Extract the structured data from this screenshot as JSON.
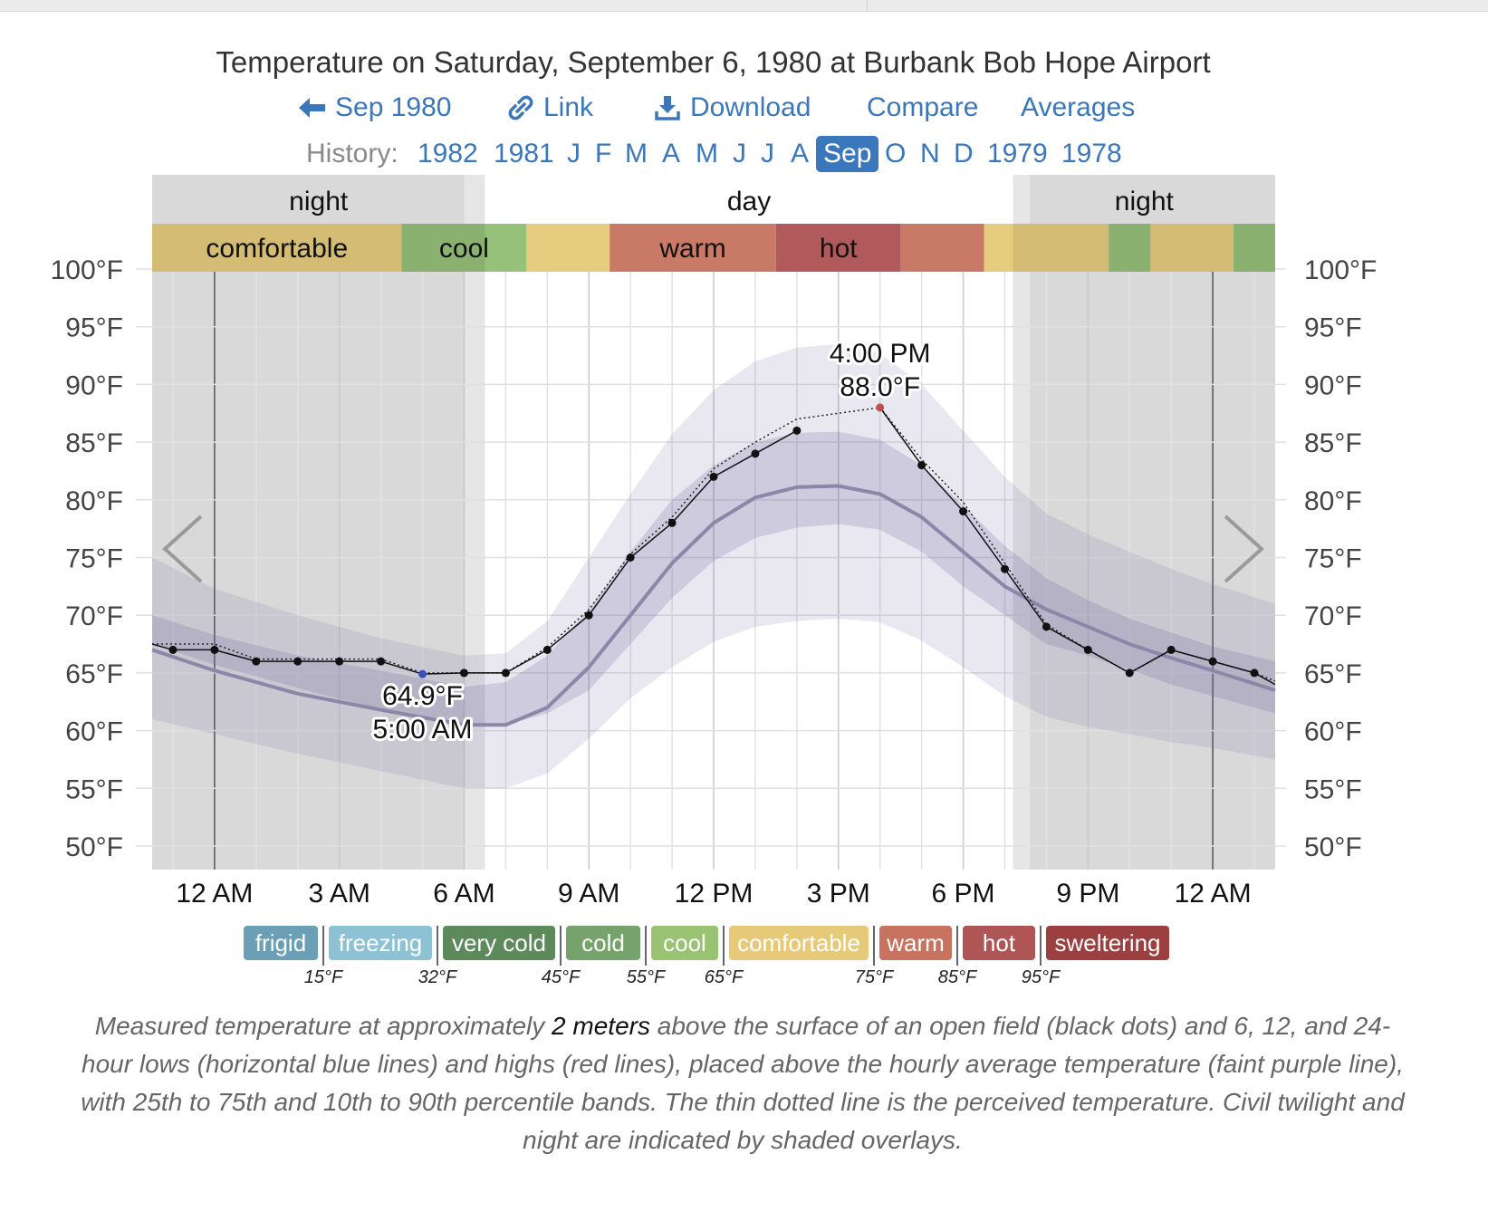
{
  "page_title": "Temperature on Saturday, September 6, 1980 at Burbank Bob Hope Airport",
  "nav": {
    "back_label": "Sep 1980",
    "link_label": "Link",
    "download_label": "Download",
    "compare_label": "Compare",
    "averages_label": "Averages"
  },
  "history": {
    "label": "History:",
    "items": [
      "1982",
      "1981",
      "J",
      "F",
      "M",
      "A",
      "M",
      "J",
      "J",
      "A",
      "Sep",
      "O",
      "N",
      "D",
      "1979",
      "1978"
    ],
    "active": "Sep"
  },
  "chart_data": {
    "type": "line",
    "x_ticks": [
      "12 AM",
      "3 AM",
      "6 AM",
      "9 AM",
      "12 PM",
      "3 PM",
      "6 PM",
      "9 PM",
      "12 AM"
    ],
    "y_ticks": [
      "50°F",
      "55°F",
      "60°F",
      "65°F",
      "70°F",
      "75°F",
      "80°F",
      "85°F",
      "90°F",
      "95°F",
      "100°F"
    ],
    "ylim": [
      48,
      103
    ],
    "xlim": [
      -1.5,
      25.5
    ],
    "grid": true,
    "periods": [
      {
        "label": "night",
        "from": -1.5,
        "to": 6.5
      },
      {
        "label": "day",
        "from": 6.5,
        "to": 19.2
      },
      {
        "label": "night",
        "from": 19.2,
        "to": 25.5
      }
    ],
    "comfort_band": [
      {
        "from": -1.5,
        "to": 4.5,
        "level": "comfortable",
        "label": "comfortable"
      },
      {
        "from": 4.5,
        "to": 7.5,
        "level": "cool",
        "label": "cool"
      },
      {
        "from": 7.5,
        "to": 9.5,
        "level": "comfortable",
        "label": ""
      },
      {
        "from": 9.5,
        "to": 13.5,
        "level": "warm",
        "label": "warm"
      },
      {
        "from": 13.5,
        "to": 16.5,
        "level": "hot",
        "label": "hot"
      },
      {
        "from": 16.5,
        "to": 18.5,
        "level": "warm",
        "label": ""
      },
      {
        "from": 18.5,
        "to": 21.5,
        "level": "comfortable",
        "label": ""
      },
      {
        "from": 21.5,
        "to": 22.5,
        "level": "cool",
        "label": ""
      },
      {
        "from": 22.5,
        "to": 24.5,
        "level": "comfortable",
        "label": ""
      },
      {
        "from": 24.5,
        "to": 25.5,
        "level": "cool",
        "label": ""
      }
    ],
    "measured": {
      "x": [
        -1,
        0,
        1,
        2,
        3,
        4,
        5,
        6,
        7,
        8,
        9,
        10,
        11,
        12,
        13,
        14,
        16,
        17,
        18,
        19,
        20,
        21,
        22,
        23,
        24,
        25
      ],
      "y": [
        67,
        67,
        66,
        66,
        66,
        66,
        64.9,
        65,
        65,
        67,
        70,
        75,
        78,
        82,
        84,
        86,
        88,
        83,
        79,
        74,
        69,
        67,
        65,
        67,
        66,
        65
      ]
    },
    "perceived": {
      "x": [
        -1.5,
        0,
        1,
        2,
        3,
        4,
        5,
        6,
        7,
        8,
        9,
        10,
        11,
        12,
        13,
        14,
        16,
        17,
        18,
        19,
        20,
        21,
        22,
        23,
        24,
        25,
        25.5
      ],
      "y": [
        67.5,
        67.5,
        66.2,
        66.2,
        66.2,
        66.2,
        65,
        65,
        65,
        67.2,
        70.5,
        75.3,
        78.5,
        82.7,
        85,
        87,
        88,
        83.5,
        79.8,
        74.5,
        69.2,
        67,
        65,
        67,
        66,
        65,
        64.3
      ]
    },
    "average": {
      "x": [
        -1.5,
        0,
        2,
        4,
        6,
        7,
        8,
        9,
        10,
        11,
        12,
        13,
        14,
        15,
        16,
        17,
        18,
        19,
        20,
        21,
        22,
        23,
        24,
        25.5
      ],
      "y": [
        67,
        65.2,
        63.2,
        61.8,
        60.5,
        60.5,
        62,
        65.5,
        70,
        74.5,
        78,
        80.2,
        81.1,
        81.2,
        80.5,
        78.5,
        75.5,
        72.5,
        70.5,
        69,
        67.5,
        66.3,
        65.2,
        63.5
      ]
    },
    "p25": [
      67.5,
      65.7,
      63.7,
      61.8,
      60.5,
      60.5,
      61.5,
      63.5,
      67.5,
      71.5,
      74.7,
      76.7,
      77.6,
      77.9,
      77.4,
      75.5,
      72.5,
      70,
      67.5,
      66.5,
      65.3,
      64,
      63,
      61.5
    ],
    "p75": [
      70,
      68.3,
      66.5,
      65.2,
      63.8,
      64.2,
      66.5,
      70.5,
      75.5,
      80,
      83,
      85,
      85.8,
      85.9,
      85.2,
      83,
      79.5,
      76,
      73.2,
      71.3,
      69.7,
      68.5,
      67.3,
      66
    ],
    "p10": [
      61,
      59.7,
      58,
      56.5,
      55,
      55,
      56.3,
      59.3,
      62.8,
      65.5,
      67.7,
      69,
      69.5,
      69.7,
      69.4,
      67.8,
      65.5,
      63,
      61.2,
      60.3,
      59.7,
      59,
      58.5,
      57.5
    ],
    "p90": [
      75,
      72.3,
      70,
      68,
      66.5,
      66.7,
      69.5,
      75,
      80.5,
      85.7,
      89.5,
      92,
      93.2,
      93.5,
      92.7,
      90,
      86,
      82,
      78.8,
      77,
      75.5,
      74,
      72.7,
      71
    ],
    "annotations": [
      {
        "x": 5,
        "y": 64.9,
        "line1": "64.9°F",
        "line2": "5:00 AM",
        "kind": "low"
      },
      {
        "x": 16,
        "y": 88.0,
        "line1": "4:00 PM",
        "line2": "88.0°F",
        "kind": "high"
      }
    ]
  },
  "legend": {
    "levels": [
      {
        "label": "frigid",
        "color": "#6a9fb5"
      },
      {
        "label": "freezing",
        "color": "#8dc1d4"
      },
      {
        "label": "very cold",
        "color": "#5d8a5b"
      },
      {
        "label": "cold",
        "color": "#75a36b"
      },
      {
        "label": "cool",
        "color": "#99c272"
      },
      {
        "label": "comfortable",
        "color": "#e6ca79"
      },
      {
        "label": "warm",
        "color": "#c7735f"
      },
      {
        "label": "hot",
        "color": "#b05556"
      },
      {
        "label": "sweltering",
        "color": "#9b3f40"
      }
    ],
    "thresholds": [
      "15°F",
      "32°F",
      "45°F",
      "55°F",
      "65°F",
      "75°F",
      "85°F",
      "95°F"
    ]
  },
  "band_colors": {
    "comfortable": "#e6cc7e",
    "cool": "#96c17a",
    "warm": "#c97a66",
    "hot": "#b15a5c"
  },
  "caption": {
    "part1": "Measured temperature at approximately ",
    "emph": "2 meters",
    "part2": " above the surface of an open field (black dots) and 6, 12, and 24-hour lows (horizontal blue lines) and highs (red lines), placed above the hourly average temperature (faint purple line), with 25th to 75th and 10th to 90th percentile bands. The thin dotted line is the perceived temperature. Civil twilight and night are indicated by shaded overlays."
  }
}
